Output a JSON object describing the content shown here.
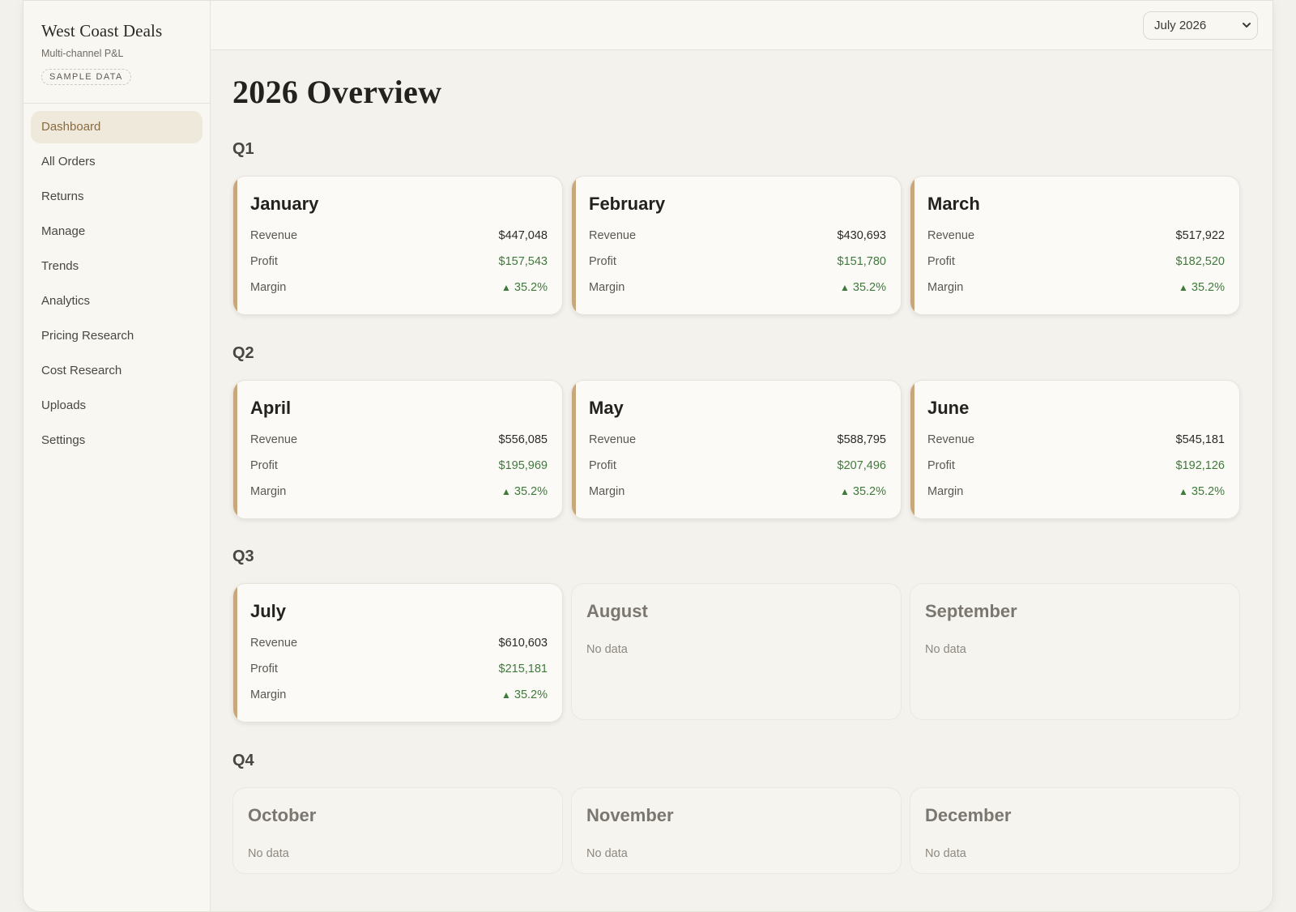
{
  "app": {
    "title": "West Coast Deals",
    "subtitle": "Multi-channel P&L",
    "badge": "SAMPLE DATA"
  },
  "sidebar": {
    "items": [
      {
        "label": "Dashboard",
        "active": true
      },
      {
        "label": "All Orders"
      },
      {
        "label": "Returns"
      },
      {
        "label": "Manage"
      },
      {
        "label": "Trends"
      },
      {
        "label": "Analytics"
      },
      {
        "label": "Pricing Research"
      },
      {
        "label": "Cost Research"
      },
      {
        "label": "Uploads"
      },
      {
        "label": "Settings"
      }
    ]
  },
  "topbar": {
    "month_select": "July 2026"
  },
  "main": {
    "title": "2026 Overview",
    "quarters": [
      "Q1",
      "Q2",
      "Q3",
      "Q4"
    ],
    "labels": {
      "revenue": "Revenue",
      "profit": "Profit",
      "margin": "Margin",
      "no_data": "No data",
      "up_arrow": "▲"
    },
    "months": [
      {
        "name": "January",
        "revenue": "$447,048",
        "profit": "$157,543",
        "margin": "35.2%"
      },
      {
        "name": "February",
        "revenue": "$430,693",
        "profit": "$151,780",
        "margin": "35.2%"
      },
      {
        "name": "March",
        "revenue": "$517,922",
        "profit": "$182,520",
        "margin": "35.2%"
      },
      {
        "name": "April",
        "revenue": "$556,085",
        "profit": "$195,969",
        "margin": "35.2%"
      },
      {
        "name": "May",
        "revenue": "$588,795",
        "profit": "$207,496",
        "margin": "35.2%"
      },
      {
        "name": "June",
        "revenue": "$545,181",
        "profit": "$192,126",
        "margin": "35.2%"
      },
      {
        "name": "July",
        "revenue": "$610,603",
        "profit": "$215,181",
        "margin": "35.2%"
      },
      {
        "name": "August"
      },
      {
        "name": "September"
      },
      {
        "name": "October"
      },
      {
        "name": "November"
      },
      {
        "name": "December"
      }
    ]
  },
  "colors": {
    "accent": "#c9a77d",
    "profit_green": "#3f7a3c",
    "active_nav_bg": "#efe9dc"
  }
}
